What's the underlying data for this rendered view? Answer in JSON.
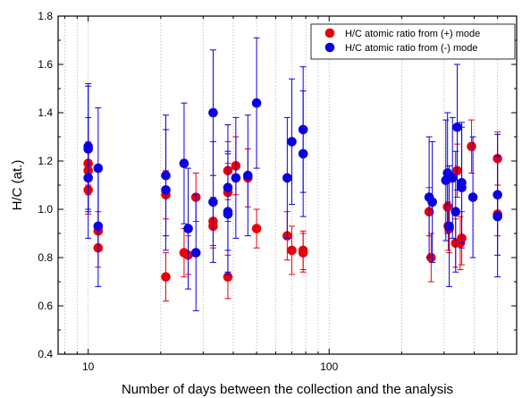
{
  "chart_data": {
    "type": "scatter",
    "title": "",
    "xlabel": "Number of days between the collection and the analysis",
    "ylabel": "H/C (at.)",
    "x_scale": "log",
    "xlim": [
      7.5,
      600
    ],
    "ylim": [
      0.4,
      1.8
    ],
    "x_ticks": [
      10,
      100
    ],
    "x_tick_labels": [
      "10",
      "100"
    ],
    "y_ticks": [
      0.4,
      0.6,
      0.8,
      1.0,
      1.2,
      1.4,
      1.6,
      1.8
    ],
    "y_tick_labels": [
      "0.4",
      "0.6",
      "0.8",
      "1.0",
      "1.2",
      "1.4",
      "1.6",
      "1.8"
    ],
    "grid_x_minor": true,
    "legend_position": "top-right",
    "series": [
      {
        "name": "H/C atomic ratio from (+) mode",
        "color": "#e8000b",
        "points": [
          {
            "x": 10,
            "y": 1.19,
            "err": 0.09
          },
          {
            "x": 10,
            "y": 1.16,
            "err": 0.1
          },
          {
            "x": 10,
            "y": 1.08,
            "err": 0.1
          },
          {
            "x": 11,
            "y": 0.84,
            "err": 0.08
          },
          {
            "x": 11,
            "y": 0.91,
            "err": 0.08
          },
          {
            "x": 21,
            "y": 1.06,
            "err": 0.1
          },
          {
            "x": 21,
            "y": 0.72,
            "err": 0.1
          },
          {
            "x": 25,
            "y": 0.82,
            "err": 0.1
          },
          {
            "x": 26,
            "y": 0.81,
            "err": 0.08
          },
          {
            "x": 28,
            "y": 1.05,
            "err": 0.1
          },
          {
            "x": 33,
            "y": 0.95,
            "err": 0.1
          },
          {
            "x": 33,
            "y": 0.93,
            "err": 0.09
          },
          {
            "x": 38,
            "y": 1.16,
            "err": 0.12
          },
          {
            "x": 38,
            "y": 1.07,
            "err": 0.12
          },
          {
            "x": 38,
            "y": 0.72,
            "err": 0.09
          },
          {
            "x": 41,
            "y": 1.18,
            "err": 0.12
          },
          {
            "x": 46,
            "y": 1.13,
            "err": 0.12
          },
          {
            "x": 50,
            "y": 0.92,
            "err": 0.08
          },
          {
            "x": 67,
            "y": 0.89,
            "err": 0.1
          },
          {
            "x": 70,
            "y": 0.83,
            "err": 0.1
          },
          {
            "x": 78,
            "y": 0.82,
            "err": 0.08
          },
          {
            "x": 78,
            "y": 0.83,
            "err": 0.08
          },
          {
            "x": 260,
            "y": 0.99,
            "err": 0.1
          },
          {
            "x": 265,
            "y": 0.8,
            "err": 0.1
          },
          {
            "x": 310,
            "y": 1.01,
            "err": 0.1
          },
          {
            "x": 312,
            "y": 0.93,
            "err": 0.1
          },
          {
            "x": 315,
            "y": 0.92,
            "err": 0.1
          },
          {
            "x": 335,
            "y": 0.86,
            "err": 0.1
          },
          {
            "x": 340,
            "y": 1.16,
            "err": 0.11
          },
          {
            "x": 350,
            "y": 0.86,
            "err": 0.11
          },
          {
            "x": 355,
            "y": 0.88,
            "err": 0.11
          },
          {
            "x": 390,
            "y": 1.26,
            "err": 0.11
          },
          {
            "x": 500,
            "y": 1.21,
            "err": 0.11
          },
          {
            "x": 500,
            "y": 0.98,
            "err": 0.09
          }
        ]
      },
      {
        "name": "H/C atomic ratio from (-) mode",
        "color": "#0b00e0",
        "points": [
          {
            "x": 10,
            "y": 1.26,
            "err": 0.26
          },
          {
            "x": 10,
            "y": 1.25,
            "err": 0.26
          },
          {
            "x": 10,
            "y": 1.13,
            "err": 0.25
          },
          {
            "x": 11,
            "y": 1.17,
            "err": 0.25
          },
          {
            "x": 11,
            "y": 0.93,
            "err": 0.25
          },
          {
            "x": 21,
            "y": 1.14,
            "err": 0.25
          },
          {
            "x": 21,
            "y": 1.08,
            "err": 0.25
          },
          {
            "x": 25,
            "y": 1.19,
            "err": 0.25
          },
          {
            "x": 26,
            "y": 0.92,
            "err": 0.25
          },
          {
            "x": 28,
            "y": 0.82,
            "err": 0.24
          },
          {
            "x": 33,
            "y": 1.4,
            "err": 0.26
          },
          {
            "x": 33,
            "y": 1.03,
            "err": 0.25
          },
          {
            "x": 38,
            "y": 1.09,
            "err": 0.26
          },
          {
            "x": 38,
            "y": 0.99,
            "err": 0.25
          },
          {
            "x": 38,
            "y": 0.98,
            "err": 0.25
          },
          {
            "x": 41,
            "y": 1.13,
            "err": 0.25
          },
          {
            "x": 46,
            "y": 1.14,
            "err": 0.25
          },
          {
            "x": 50,
            "y": 1.44,
            "err": 0.27
          },
          {
            "x": 67,
            "y": 1.13,
            "err": 0.25
          },
          {
            "x": 70,
            "y": 1.28,
            "err": 0.26
          },
          {
            "x": 78,
            "y": 1.33,
            "err": 0.26
          },
          {
            "x": 78,
            "y": 1.23,
            "err": 0.26
          },
          {
            "x": 260,
            "y": 1.05,
            "err": 0.25
          },
          {
            "x": 268,
            "y": 1.03,
            "err": 0.25
          },
          {
            "x": 305,
            "y": 1.12,
            "err": 0.25
          },
          {
            "x": 310,
            "y": 1.15,
            "err": 0.25
          },
          {
            "x": 315,
            "y": 0.93,
            "err": 0.25
          },
          {
            "x": 325,
            "y": 1.13,
            "err": 0.25
          },
          {
            "x": 335,
            "y": 0.99,
            "err": 0.25
          },
          {
            "x": 340,
            "y": 1.34,
            "err": 0.26
          },
          {
            "x": 355,
            "y": 1.11,
            "err": 0.25
          },
          {
            "x": 355,
            "y": 1.09,
            "err": 0.25
          },
          {
            "x": 395,
            "y": 1.05,
            "err": 0.25
          },
          {
            "x": 500,
            "y": 1.06,
            "err": 0.25
          },
          {
            "x": 500,
            "y": 0.97,
            "err": 0.25
          }
        ]
      }
    ]
  }
}
